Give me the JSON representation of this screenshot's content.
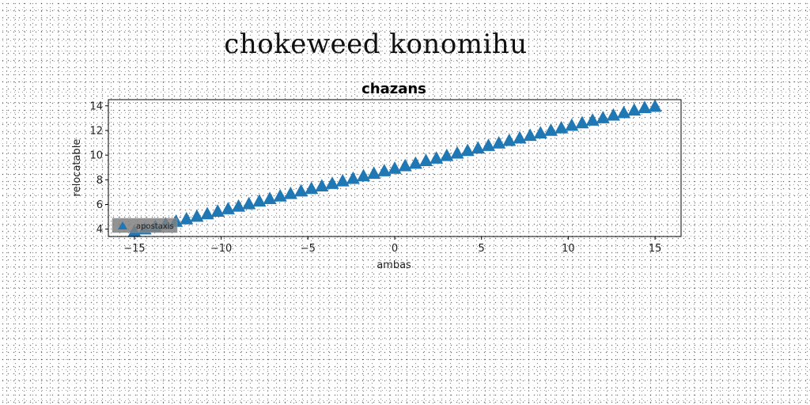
{
  "page": {
    "suptitle": "chokeweed konomihu"
  },
  "chart_data": {
    "type": "scatter",
    "title": "chazans",
    "xlabel": "ambas",
    "ylabel": "relocatable",
    "xlim": [
      -16.5,
      16.5
    ],
    "ylim": [
      3.4,
      14.5
    ],
    "xticks": [
      -15,
      -10,
      -5,
      0,
      5,
      10,
      15
    ],
    "xtick_labels": [
      "−15",
      "−10",
      "−5",
      "0",
      "5",
      "10",
      "15"
    ],
    "yticks": [
      4,
      6,
      8,
      10,
      12,
      14
    ],
    "ytick_labels": [
      "4",
      "6",
      "8",
      "10",
      "12",
      "14"
    ],
    "grid": false,
    "legend_position": "lower-left",
    "series": [
      {
        "name": "apostaxis",
        "color": "#1f77b4",
        "marker": "triangle-up",
        "x": [
          -15,
          -14.4,
          -13.8,
          -13.2,
          -12.6,
          -12,
          -11.4,
          -10.8,
          -10.2,
          -9.6,
          -9,
          -8.4,
          -7.8,
          -7.2,
          -6.6,
          -6,
          -5.4,
          -4.8,
          -4.2,
          -3.6,
          -3,
          -2.4,
          -1.8,
          -1.2,
          -0.6,
          0,
          0.6,
          1.2,
          1.8,
          2.4,
          3,
          3.6,
          4.2,
          4.8,
          5.4,
          6,
          6.6,
          7.2,
          7.8,
          8.4,
          9,
          9.6,
          10.2,
          10.8,
          11.4,
          12,
          12.6,
          13.2,
          13.8,
          14.4,
          15
        ],
        "y": [
          3.8,
          4.0,
          4.21,
          4.41,
          4.62,
          4.82,
          5.03,
          5.23,
          5.44,
          5.64,
          5.85,
          6.05,
          6.26,
          6.46,
          6.67,
          6.87,
          7.08,
          7.28,
          7.49,
          7.69,
          7.9,
          8.1,
          8.31,
          8.51,
          8.72,
          8.92,
          9.13,
          9.33,
          9.54,
          9.74,
          9.95,
          10.15,
          10.36,
          10.56,
          10.77,
          10.97,
          11.18,
          11.38,
          11.59,
          11.79,
          12.0,
          12.2,
          12.41,
          12.61,
          12.82,
          13.02,
          13.23,
          13.43,
          13.64,
          13.84,
          13.95
        ]
      }
    ]
  }
}
